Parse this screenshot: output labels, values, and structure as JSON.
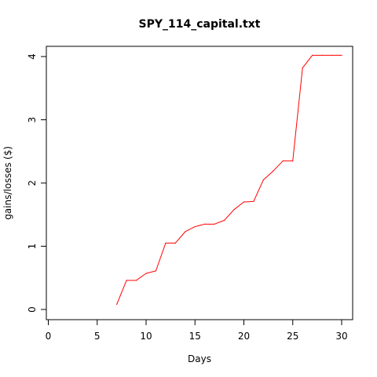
{
  "chart_data": {
    "type": "line",
    "title": "SPY_114_capital.txt",
    "xlabel": "Days",
    "ylabel": "gains/losses ($)",
    "xlim": [
      0,
      30
    ],
    "ylim": [
      0,
      4
    ],
    "x_ticks": [
      "0",
      "5",
      "10",
      "15",
      "20",
      "25",
      "30"
    ],
    "y_ticks": [
      "0",
      "1",
      "2",
      "3",
      "4"
    ],
    "grid": false,
    "line_color": "#ff0000",
    "series": [
      {
        "x": [
          7,
          8,
          9,
          10,
          11,
          12,
          13,
          14,
          15,
          16,
          17,
          18,
          19,
          20,
          21,
          22,
          23,
          24,
          25,
          26,
          27,
          28,
          29,
          30
        ],
        "values": [
          0.08,
          0.46,
          0.46,
          0.57,
          0.61,
          1.05,
          1.05,
          1.23,
          1.31,
          1.35,
          1.35,
          1.41,
          1.58,
          1.7,
          1.71,
          2.05,
          2.19,
          2.35,
          2.35,
          3.82,
          4.02,
          4.02,
          4.02,
          4.02
        ]
      }
    ]
  }
}
